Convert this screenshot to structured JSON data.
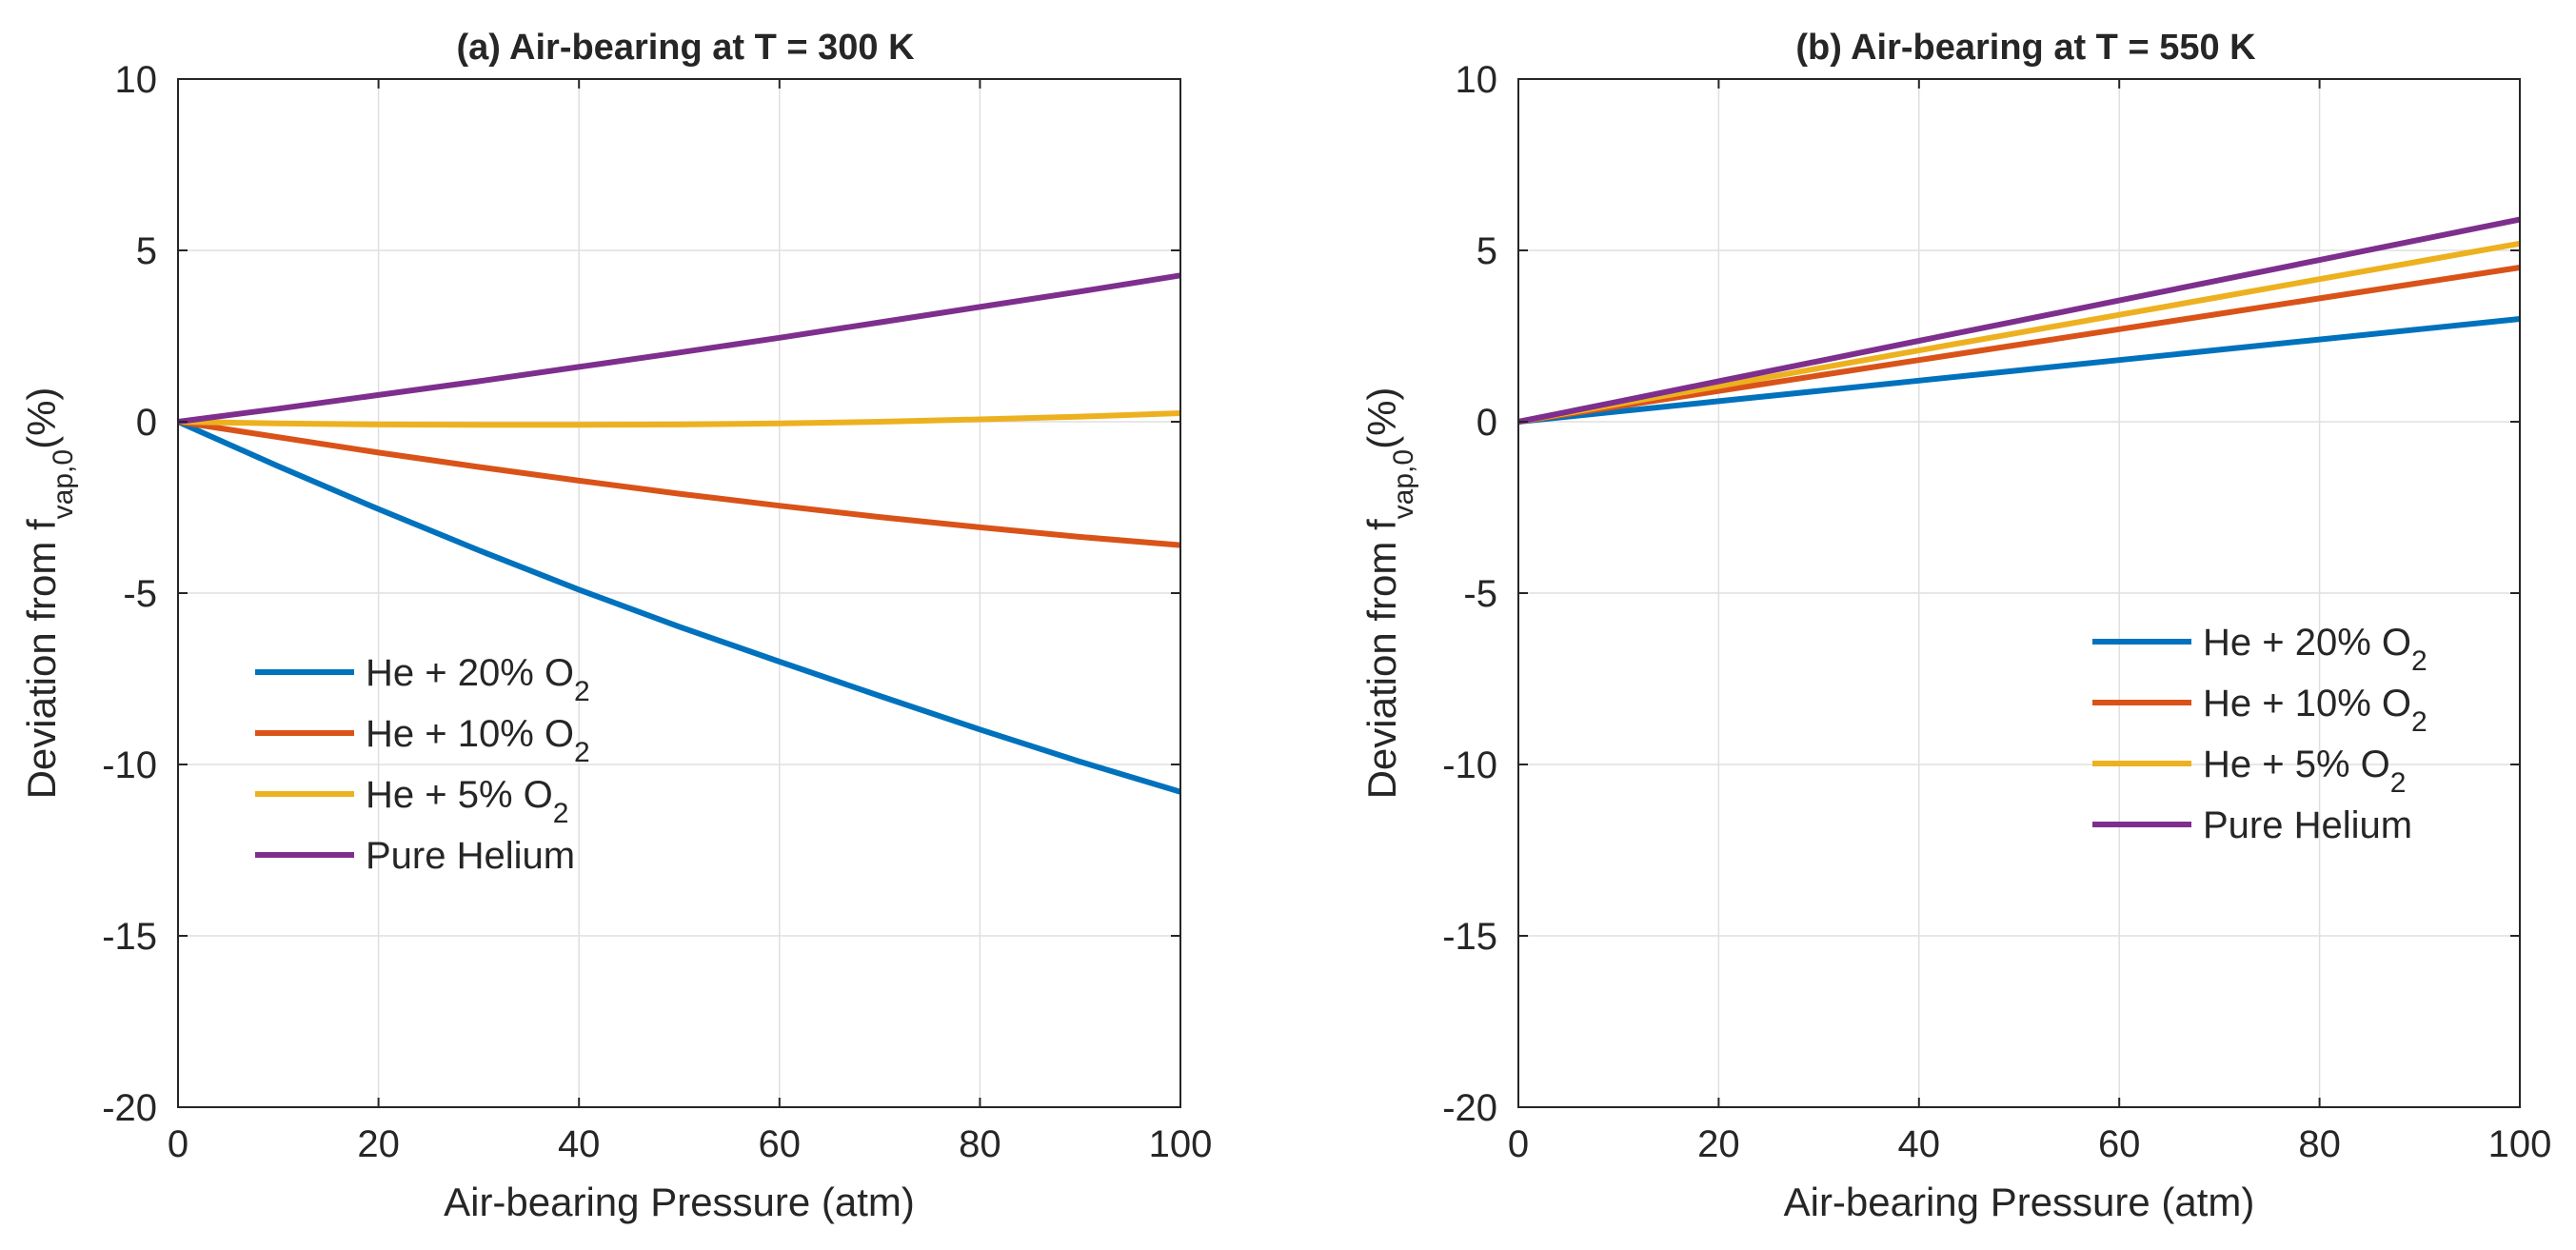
{
  "chart_data": [
    {
      "type": "line",
      "title": "(a) Air-bearing at T = 300 K",
      "xlabel": "Air-bearing Pressure (atm)",
      "ylabel": {
        "main": "Deviation from f",
        "sub": "vap,0",
        "suffix": "(%)"
      },
      "xlim": [
        0,
        100
      ],
      "ylim": [
        -20,
        10
      ],
      "xticks": [
        "0",
        "20",
        "40",
        "60",
        "80",
        "100"
      ],
      "yticks": [
        "10",
        "5",
        "0",
        "-5",
        "-10",
        "-15",
        "-20"
      ],
      "grid": true,
      "legend_position": "middle-left",
      "x": [
        0,
        10,
        20,
        30,
        40,
        50,
        60,
        70,
        80,
        90,
        100
      ],
      "series": [
        {
          "name": "He + 20% O2",
          "label_main": "He + 20% O",
          "label_sub": "2",
          "color": "#0072BD",
          "values": [
            0,
            -1.3,
            -2.55,
            -3.75,
            -4.9,
            -5.98,
            -7.0,
            -8.0,
            -8.98,
            -9.92,
            -10.8
          ]
        },
        {
          "name": "He + 10% O2",
          "label_main": "He + 10% O",
          "label_sub": "2",
          "color": "#D95319",
          "values": [
            0,
            -0.45,
            -0.9,
            -1.32,
            -1.72,
            -2.1,
            -2.45,
            -2.78,
            -3.08,
            -3.36,
            -3.6
          ]
        },
        {
          "name": "He + 5% O2",
          "label_main": "He +  5% O",
          "label_sub": "2",
          "color": "#EDB120",
          "values": [
            0,
            -0.05,
            -0.08,
            -0.09,
            -0.09,
            -0.08,
            -0.05,
            0.0,
            0.07,
            0.15,
            0.25
          ]
        },
        {
          "name": "Pure Helium",
          "label_main": "Pure Helium",
          "label_sub": "",
          "color": "#7E2F8E",
          "values": [
            0,
            0.38,
            0.78,
            1.18,
            1.6,
            2.02,
            2.45,
            2.9,
            3.35,
            3.8,
            4.27
          ]
        }
      ]
    },
    {
      "type": "line",
      "title": "(b) Air-bearing at T = 550 K",
      "xlabel": "Air-bearing Pressure (atm)",
      "ylabel": {
        "main": "Deviation from f",
        "sub": "vap,0",
        "suffix": "(%)"
      },
      "xlim": [
        0,
        100
      ],
      "ylim": [
        -20,
        10
      ],
      "xticks": [
        "0",
        "20",
        "40",
        "60",
        "80",
        "100"
      ],
      "yticks": [
        "10",
        "5",
        "0",
        "-5",
        "-10",
        "-15",
        "-20"
      ],
      "grid": true,
      "legend_position": "middle-right",
      "x": [
        0,
        10,
        20,
        30,
        40,
        50,
        60,
        70,
        80,
        90,
        100
      ],
      "series": [
        {
          "name": "He + 20% O2",
          "label_main": "He + 20% O",
          "label_sub": "2",
          "color": "#0072BD",
          "values": [
            0,
            0.3,
            0.6,
            0.9,
            1.2,
            1.5,
            1.8,
            2.1,
            2.4,
            2.7,
            3.0
          ]
        },
        {
          "name": "He + 10% O2",
          "label_main": "He + 10% O",
          "label_sub": "2",
          "color": "#D95319",
          "values": [
            0,
            0.45,
            0.9,
            1.35,
            1.8,
            2.25,
            2.7,
            3.15,
            3.6,
            4.05,
            4.5
          ]
        },
        {
          "name": "He + 5% O2",
          "label_main": "He +  5% O",
          "label_sub": "2",
          "color": "#EDB120",
          "values": [
            0,
            0.52,
            1.04,
            1.56,
            2.08,
            2.6,
            3.12,
            3.64,
            4.16,
            4.68,
            5.2
          ]
        },
        {
          "name": "Pure Helium",
          "label_main": "Pure Helium",
          "label_sub": "",
          "color": "#7E2F8E",
          "values": [
            0,
            0.59,
            1.18,
            1.77,
            2.36,
            2.95,
            3.54,
            4.13,
            4.72,
            5.31,
            5.9
          ]
        }
      ]
    }
  ]
}
